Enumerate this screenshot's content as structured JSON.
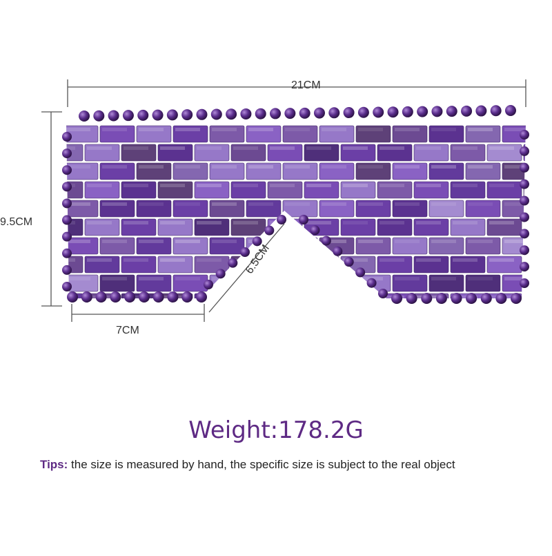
{
  "dimensions": {
    "width": "21CM",
    "height": "9.5CM",
    "bottom_edge": "7CM",
    "diagonal_edge": "6.5CM"
  },
  "weight_text": "Weight:178.2G",
  "tips": {
    "label": "Tips:",
    "text": " the size is measured by hand, the specific size is subject to the real object"
  },
  "colors": {
    "accent": "#5e2a84",
    "stone": "#6a3fa0",
    "line": "#555555"
  }
}
